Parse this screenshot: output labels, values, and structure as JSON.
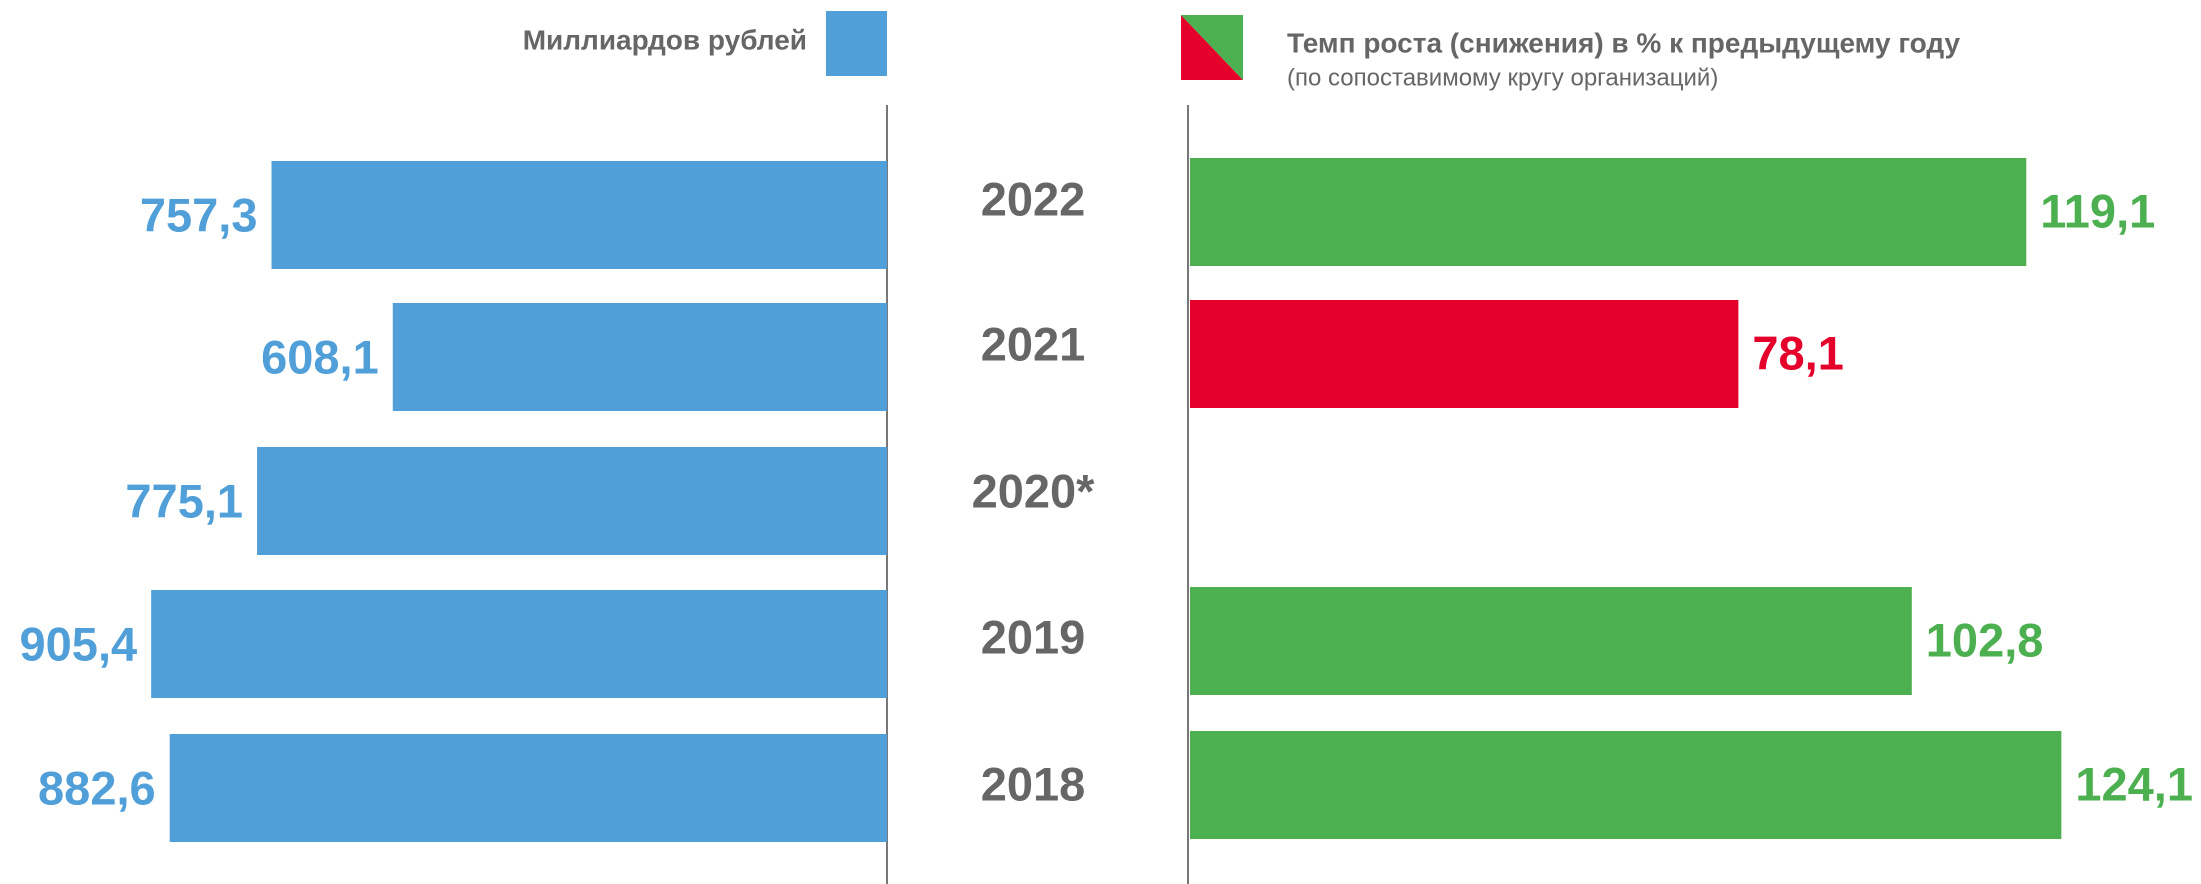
{
  "chart_data": [
    {
      "type": "bar",
      "orientation": "horizontal-left",
      "legend": "Миллиардов рублей",
      "color": "#519fd8",
      "categories": [
        "2022",
        "2021",
        "2020*",
        "2019",
        "2018"
      ],
      "values": [
        757.3,
        608.1,
        775.1,
        905.4,
        882.6
      ],
      "value_labels": [
        "757,3",
        "608,1",
        "775,1",
        "905,4",
        "882,6"
      ],
      "xlim": [
        0,
        1100
      ]
    },
    {
      "type": "bar",
      "orientation": "horizontal-right",
      "legend": "Темп роста (снижения) в % к предыдущему году",
      "legend_note": "(по сопоставимому кругу организаций)",
      "legend_colors": [
        "#e4002b",
        "#4caf50"
      ],
      "values": [
        119.1,
        78.1,
        null,
        102.8,
        124.1
      ],
      "value_labels": [
        "119,1",
        "78,1",
        null,
        "102,8",
        "124,1"
      ],
      "colors": [
        "#4caf50",
        "#e4002b",
        null,
        "#4caf50",
        "#4caf50"
      ],
      "xlim": [
        0,
        140
      ]
    }
  ]
}
